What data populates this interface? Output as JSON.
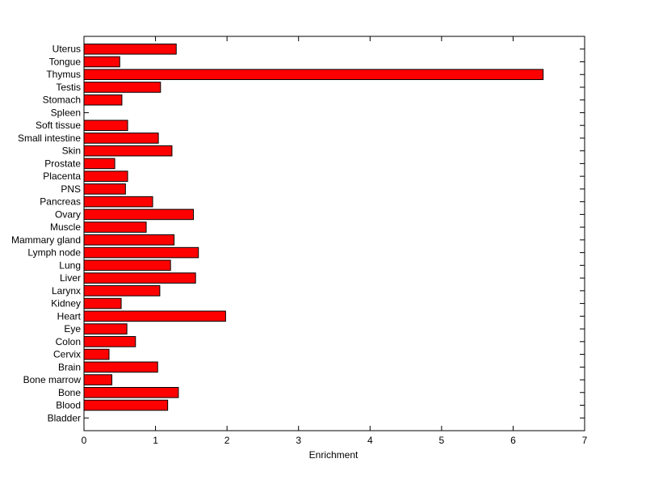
{
  "chart_data": {
    "type": "bar",
    "orientation": "horizontal",
    "title": "",
    "xlabel": "Enrichment",
    "ylabel": "",
    "xlim": [
      0,
      7
    ],
    "xticks": [
      "0",
      "1",
      "2",
      "3",
      "4",
      "5",
      "6",
      "7"
    ],
    "grid": false,
    "bar_color": "#ff0000",
    "categories": [
      "Uterus",
      "Tongue",
      "Thymus",
      "Testis",
      "Stomach",
      "Spleen",
      "Soft tissue",
      "Small intestine",
      "Skin",
      "Prostate",
      "Placenta",
      "PNS",
      "Pancreas",
      "Ovary",
      "Muscle",
      "Mammary gland",
      "Lymph node",
      "Lung",
      "Liver",
      "Larynx",
      "Kidney",
      "Heart",
      "Eye",
      "Colon",
      "Cervix",
      "Brain",
      "Bone marrow",
      "Bone",
      "Blood",
      "Bladder"
    ],
    "values": [
      1.29,
      0.5,
      6.42,
      1.07,
      0.53,
      0,
      0.61,
      1.04,
      1.23,
      0.43,
      0.61,
      0.58,
      0.96,
      1.53,
      0.87,
      1.26,
      1.6,
      1.21,
      1.56,
      1.06,
      0.52,
      1.98,
      0.6,
      0.72,
      0.35,
      1.03,
      0.39,
      1.32,
      1.17,
      0
    ]
  }
}
